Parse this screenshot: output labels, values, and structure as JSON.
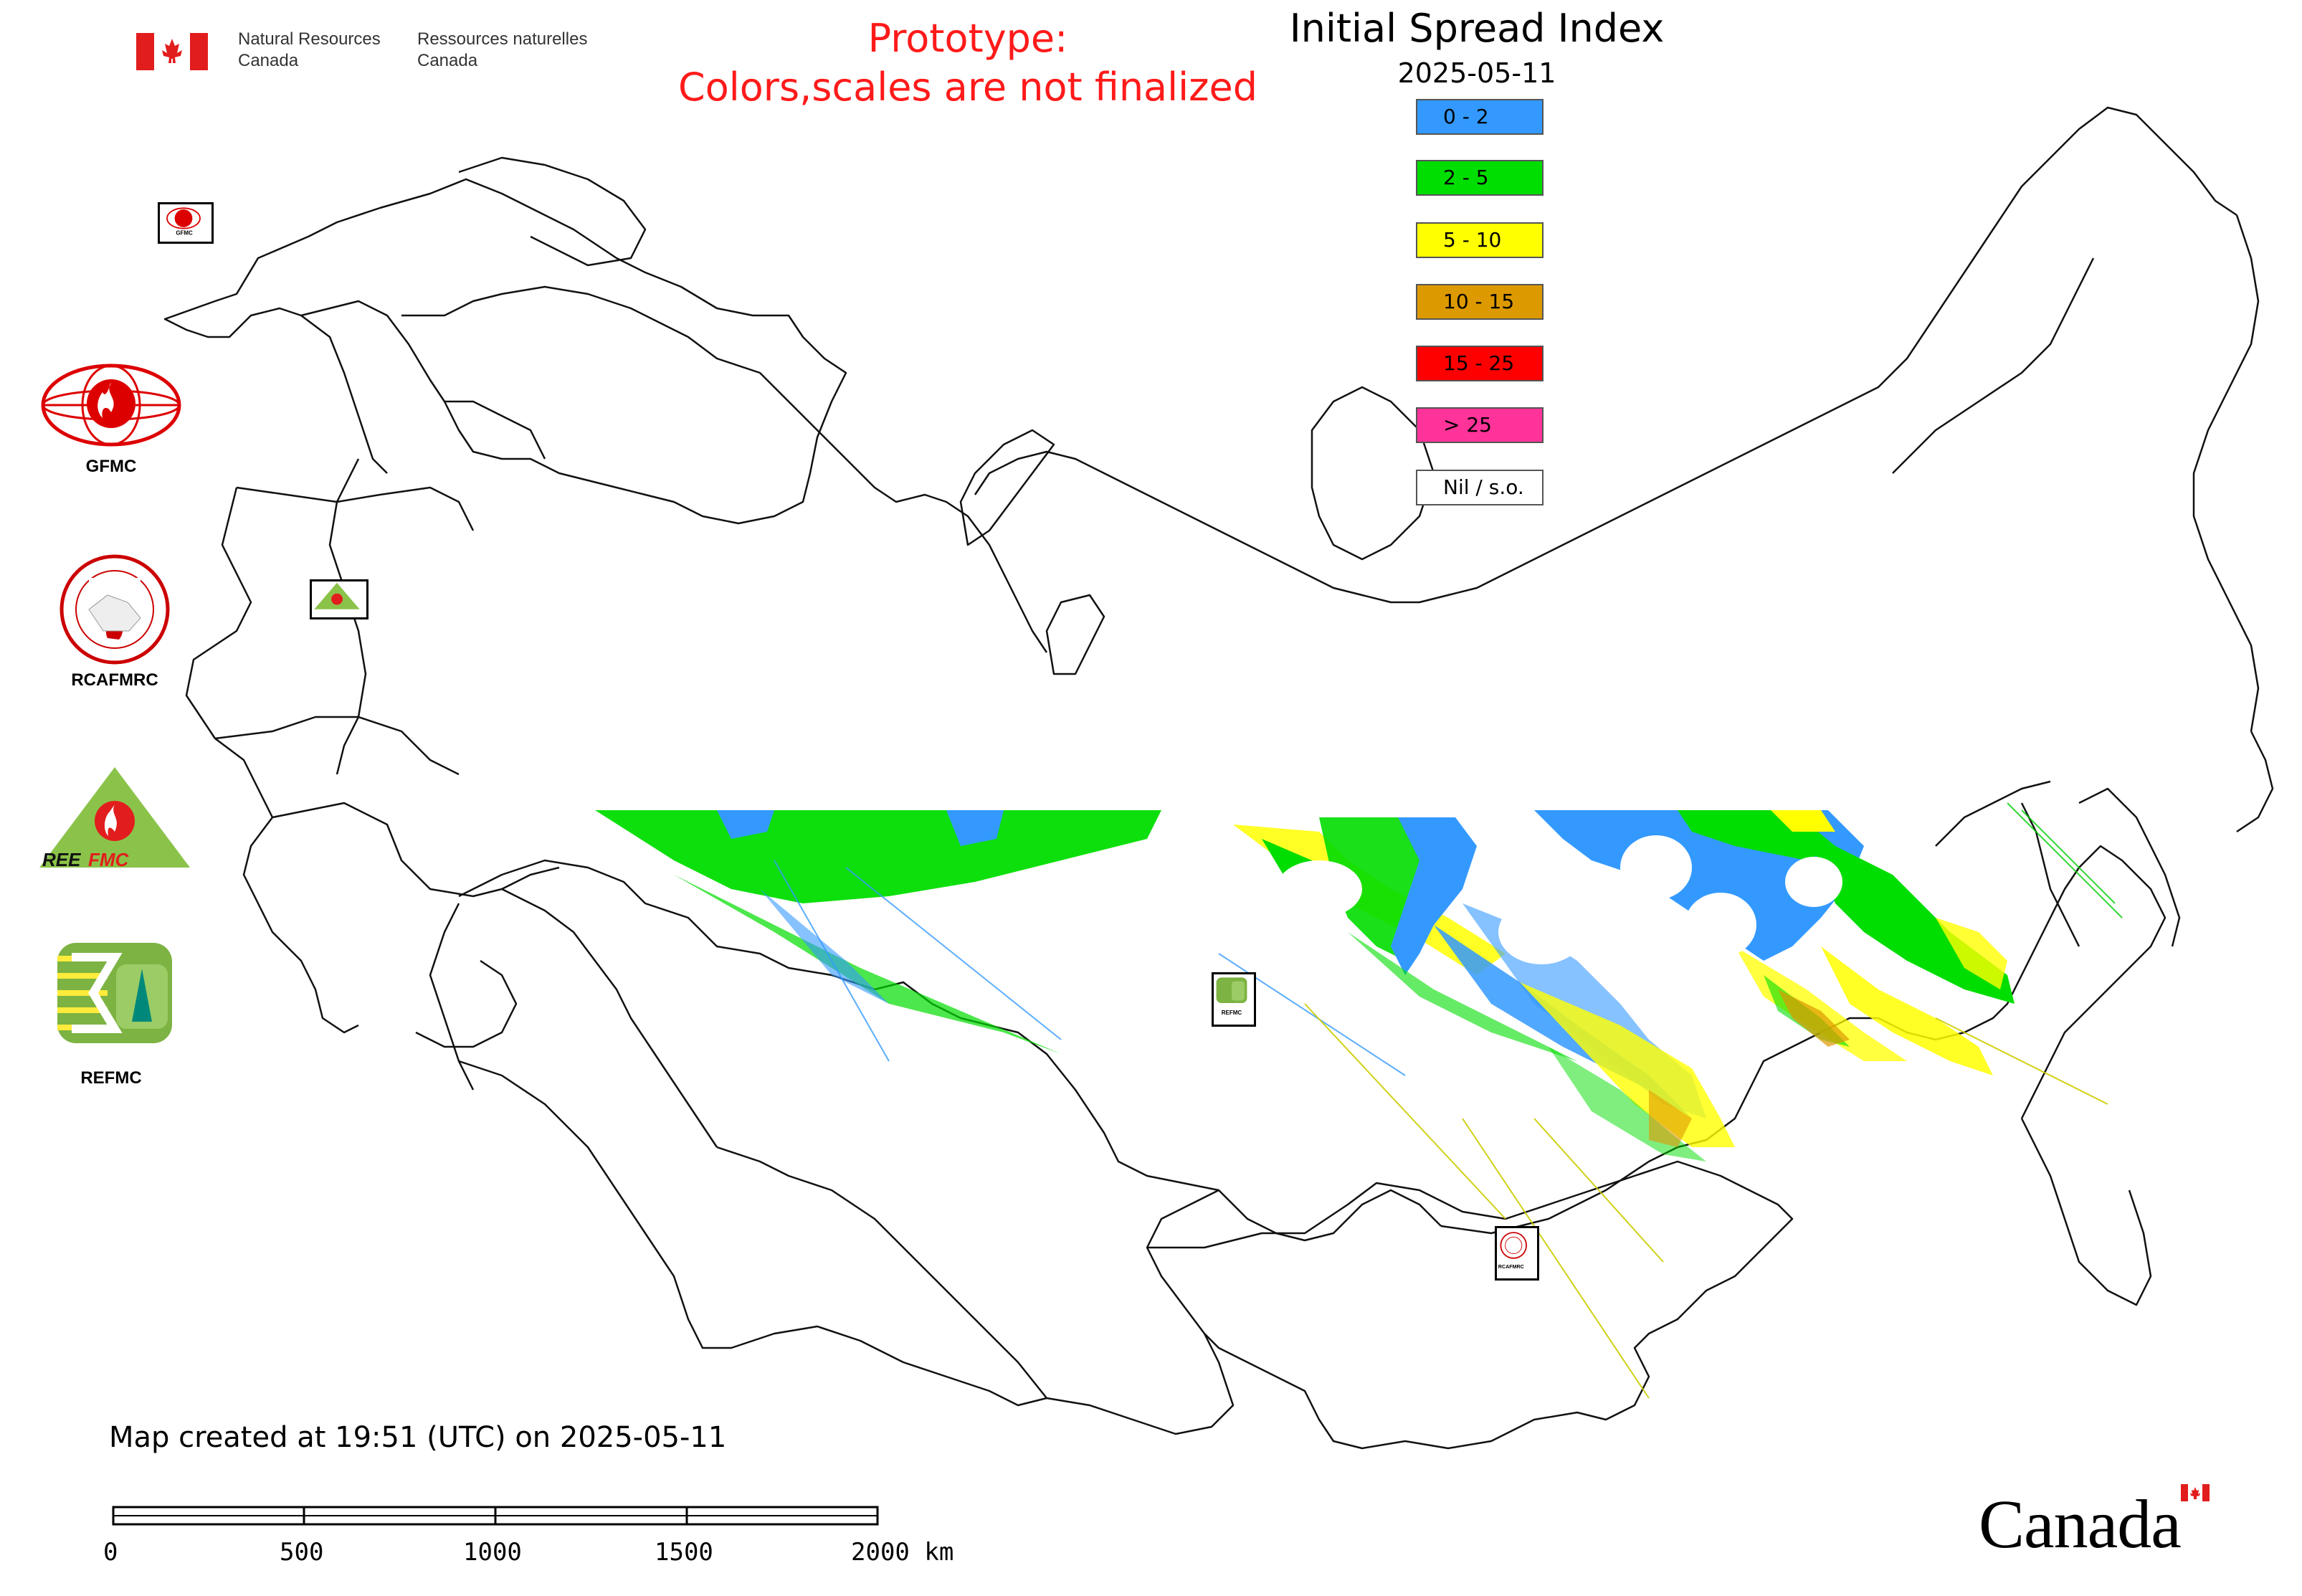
{
  "header": {
    "org_en_line1": "Natural Resources",
    "org_en_line2": "Canada",
    "org_fr_line1": "Ressources naturelles",
    "org_fr_line2": "Canada",
    "prototype_line1": "Prototype:",
    "prototype_line2": "Colors,scales are not finalized",
    "title": "Initial Spread Index",
    "date": "2025-05-11"
  },
  "legend": [
    {
      "label": "0 - 2",
      "color": "#3399ff"
    },
    {
      "label": "2 - 5",
      "color": "#00dd00"
    },
    {
      "label": "5 - 10",
      "color": "#ffff00"
    },
    {
      "label": "10 - 15",
      "color": "#dd9900"
    },
    {
      "label": "15 - 25",
      "color": "#ff0000"
    },
    {
      "label": "> 25",
      "color": "#ff3399"
    },
    {
      "label": "Nil / s.o.",
      "color": "#ffffff"
    }
  ],
  "partners": [
    {
      "name": "GFMC",
      "icon": "gfmc-logo-icon"
    },
    {
      "name": "RCAFMRC",
      "icon": "rcafmrc-logo-icon"
    },
    {
      "name": "REEFMC",
      "icon": "reefmc-logo-icon"
    },
    {
      "name": "REFMC",
      "icon": "refmc-logo-icon"
    }
  ],
  "map_markers": [
    {
      "name": "GFMC",
      "icon": "gfmc-marker-icon"
    },
    {
      "name": "REEFMC",
      "icon": "reefmc-marker-icon"
    },
    {
      "name": "REFMC",
      "icon": "refmc-marker-icon"
    },
    {
      "name": "RCAFMRC",
      "icon": "rcafmrc-marker-icon"
    }
  ],
  "footer": {
    "created": "Map created at 19:51 (UTC) on 2025-05-11",
    "scale_labels": [
      "0",
      "500",
      "1000",
      "1500",
      "2000 km"
    ],
    "wordmark": "Canada"
  },
  "colors": {
    "prototype_text": "#ff1a1a",
    "border": "#000000"
  }
}
